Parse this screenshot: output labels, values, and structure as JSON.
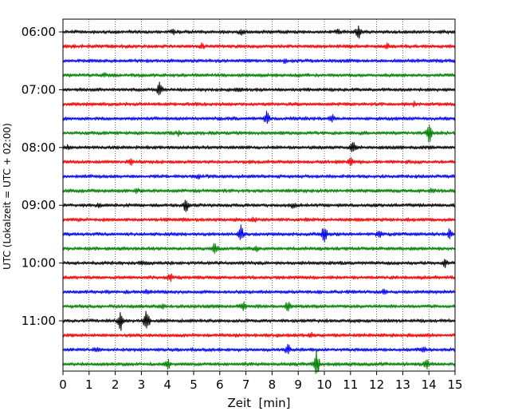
{
  "chart_data": {
    "type": "line",
    "title": "",
    "xlabel": "Zeit  [min]",
    "ylabel": "UTC (Lokalzeit = UTC + 02:00)",
    "xlim": [
      0,
      15
    ],
    "x_ticks": [
      0,
      1,
      2,
      3,
      4,
      5,
      6,
      7,
      8,
      9,
      10,
      11,
      12,
      13,
      14,
      15
    ],
    "y_tick_labels": [
      "06:00",
      "07:00",
      "08:00",
      "09:00",
      "10:00",
      "11:00"
    ],
    "rows_per_hour": 4,
    "row_minutes": 15,
    "grid": "vertical dotted at each minute",
    "trace_colors": [
      "#000000",
      "#ff0000",
      "#0000ff",
      "#008000"
    ],
    "traces": [
      {
        "start": "06:00",
        "color": "#000000",
        "events": [
          {
            "t": 11.3,
            "amp": 0.6
          },
          {
            "t": 6.8,
            "amp": 0.25
          },
          {
            "t": 4.2,
            "amp": 0.2
          },
          {
            "t": 10.5,
            "amp": 0.2
          }
        ]
      },
      {
        "start": "06:15",
        "color": "#ff0000",
        "events": [
          {
            "t": 5.3,
            "amp": 0.2
          },
          {
            "t": 12.4,
            "amp": 0.15
          }
        ]
      },
      {
        "start": "06:30",
        "color": "#0000ff",
        "events": [
          {
            "t": 8.5,
            "amp": 0.15
          }
        ]
      },
      {
        "start": "06:45",
        "color": "#008000",
        "events": [
          {
            "t": 1.6,
            "amp": 0.12
          }
        ]
      },
      {
        "start": "07:00",
        "color": "#000000",
        "events": [
          {
            "t": 3.7,
            "amp": 0.6
          },
          {
            "t": 6.7,
            "amp": 0.2
          }
        ]
      },
      {
        "start": "07:15",
        "color": "#ff0000",
        "events": [
          {
            "t": 13.4,
            "amp": 0.15
          }
        ]
      },
      {
        "start": "07:30",
        "color": "#0000ff",
        "events": [
          {
            "t": 7.8,
            "amp": 0.7
          },
          {
            "t": 10.3,
            "amp": 0.25
          }
        ]
      },
      {
        "start": "07:45",
        "color": "#008000",
        "events": [
          {
            "t": 14.0,
            "amp": 0.9
          },
          {
            "t": 4.4,
            "amp": 0.15
          }
        ]
      },
      {
        "start": "08:00",
        "color": "#000000",
        "events": [
          {
            "t": 11.1,
            "amp": 0.4
          },
          {
            "t": 0.2,
            "amp": 0.2
          }
        ]
      },
      {
        "start": "08:15",
        "color": "#ff0000",
        "events": [
          {
            "t": 11.0,
            "amp": 0.35
          },
          {
            "t": 2.6,
            "amp": 0.2
          }
        ]
      },
      {
        "start": "08:30",
        "color": "#0000ff",
        "events": [
          {
            "t": 5.2,
            "amp": 0.15
          }
        ]
      },
      {
        "start": "08:45",
        "color": "#008000",
        "events": [
          {
            "t": 14.1,
            "amp": 0.2
          },
          {
            "t": 2.8,
            "amp": 0.15
          }
        ]
      },
      {
        "start": "09:00",
        "color": "#000000",
        "events": [
          {
            "t": 4.7,
            "amp": 0.6
          },
          {
            "t": 8.8,
            "amp": 0.2
          },
          {
            "t": 1.4,
            "amp": 0.15
          }
        ]
      },
      {
        "start": "09:15",
        "color": "#ff0000",
        "events": [
          {
            "t": 7.3,
            "amp": 0.15
          }
        ]
      },
      {
        "start": "09:30",
        "color": "#0000ff",
        "events": [
          {
            "t": 6.8,
            "amp": 0.8
          },
          {
            "t": 10.0,
            "amp": 0.9
          },
          {
            "t": 14.8,
            "amp": 0.4
          },
          {
            "t": 12.1,
            "amp": 0.2
          }
        ]
      },
      {
        "start": "09:45",
        "color": "#008000",
        "events": [
          {
            "t": 5.8,
            "amp": 0.8
          },
          {
            "t": 7.4,
            "amp": 0.2
          }
        ]
      },
      {
        "start": "10:00",
        "color": "#000000",
        "events": [
          {
            "t": 14.6,
            "amp": 0.3
          },
          {
            "t": 3.0,
            "amp": 0.15
          }
        ]
      },
      {
        "start": "10:15",
        "color": "#ff0000",
        "events": [
          {
            "t": 4.1,
            "amp": 0.3
          }
        ]
      },
      {
        "start": "10:30",
        "color": "#0000ff",
        "events": [
          {
            "t": 12.3,
            "amp": 0.2
          },
          {
            "t": 3.2,
            "amp": 0.2
          }
        ]
      },
      {
        "start": "10:45",
        "color": "#008000",
        "events": [
          {
            "t": 6.9,
            "amp": 0.45
          },
          {
            "t": 8.6,
            "amp": 0.4
          },
          {
            "t": 3.8,
            "amp": 0.2
          }
        ]
      },
      {
        "start": "11:00",
        "color": "#000000",
        "events": [
          {
            "t": 2.2,
            "amp": 1.0
          },
          {
            "t": 3.2,
            "amp": 1.2
          }
        ]
      },
      {
        "start": "11:15",
        "color": "#ff0000",
        "events": [
          {
            "t": 9.5,
            "amp": 0.15
          }
        ]
      },
      {
        "start": "11:30",
        "color": "#0000ff",
        "events": [
          {
            "t": 8.6,
            "amp": 0.45
          },
          {
            "t": 1.3,
            "amp": 0.2
          },
          {
            "t": 13.8,
            "amp": 0.2
          }
        ]
      },
      {
        "start": "11:45",
        "color": "#008000",
        "events": [
          {
            "t": 9.7,
            "amp": 1.3
          },
          {
            "t": 4.0,
            "amp": 0.45
          },
          {
            "t": 13.9,
            "amp": 0.5
          }
        ]
      }
    ]
  }
}
